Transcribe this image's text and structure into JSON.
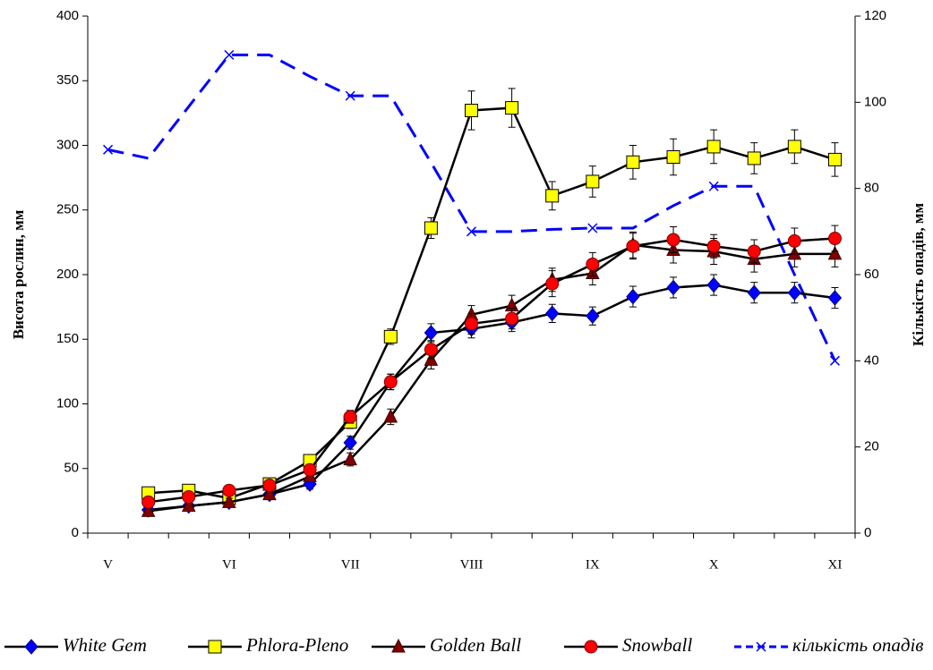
{
  "chart_data": {
    "type": "line",
    "categories": [
      "V",
      null,
      null,
      "VI",
      null,
      null,
      "VII",
      null,
      null,
      "VIII",
      null,
      null,
      "IX",
      null,
      null,
      "X",
      null,
      null,
      "XI"
    ],
    "ylabel": "Висота рослин, мм",
    "y2label": "Кількість опадів, мм",
    "ylim": [
      0,
      400
    ],
    "yticks": [
      0,
      50,
      100,
      150,
      200,
      250,
      300,
      350,
      400
    ],
    "y2lim": [
      0,
      120
    ],
    "y2ticks": [
      0,
      20,
      40,
      60,
      80,
      100,
      120
    ],
    "series": [
      {
        "name": "White Gem",
        "color": "#0000ff",
        "marker": "diamond",
        "values": [
          null,
          18,
          21,
          24,
          30,
          38,
          70,
          117,
          155,
          158,
          163,
          170,
          168,
          183,
          190,
          192,
          186,
          186,
          182
        ],
        "errors": [
          null,
          3,
          3,
          3,
          3,
          4,
          5,
          6,
          7,
          7,
          7,
          7,
          7,
          8,
          8,
          8,
          8,
          8,
          8
        ]
      },
      {
        "name": "Phlora-Pleno",
        "color": "#ffff00",
        "marker": "square",
        "values": [
          null,
          31,
          33,
          27,
          38,
          56,
          86,
          152,
          236,
          327,
          329,
          261,
          272,
          287,
          291,
          299,
          290,
          299,
          289
        ],
        "errors": [
          null,
          3,
          3,
          3,
          4,
          4,
          5,
          6,
          8,
          15,
          15,
          11,
          12,
          13,
          14,
          13,
          12,
          13,
          13
        ]
      },
      {
        "name": "Golden Ball",
        "color": "#800000",
        "marker": "triangle",
        "values": [
          null,
          17,
          21,
          24,
          30,
          44,
          57,
          90,
          134,
          169,
          176,
          196,
          201,
          223,
          219,
          218,
          212,
          216,
          216
        ],
        "errors": [
          null,
          3,
          3,
          3,
          3,
          4,
          5,
          6,
          7,
          7,
          8,
          9,
          9,
          10,
          10,
          10,
          10,
          10,
          10
        ]
      },
      {
        "name": "Snowball",
        "color": "#ff0000",
        "marker": "circle",
        "values": [
          null,
          24,
          28,
          33,
          37,
          49,
          90,
          117,
          142,
          162,
          166,
          193,
          208,
          222,
          227,
          222,
          218,
          226,
          228
        ],
        "errors": [
          null,
          3,
          3,
          3,
          3,
          4,
          5,
          6,
          7,
          8,
          8,
          10,
          9,
          10,
          10,
          9,
          9,
          10,
          10
        ]
      },
      {
        "name": "кількість опадів",
        "color": "#0000ff",
        "marker": "x",
        "axis": "y2",
        "line_style": "dashed",
        "values": [
          89,
          87,
          99,
          111,
          111,
          106,
          101.5,
          101.5,
          86,
          70,
          70,
          70.5,
          70.8,
          70.8,
          76,
          80.5,
          80.5,
          60,
          40
        ]
      }
    ]
  }
}
